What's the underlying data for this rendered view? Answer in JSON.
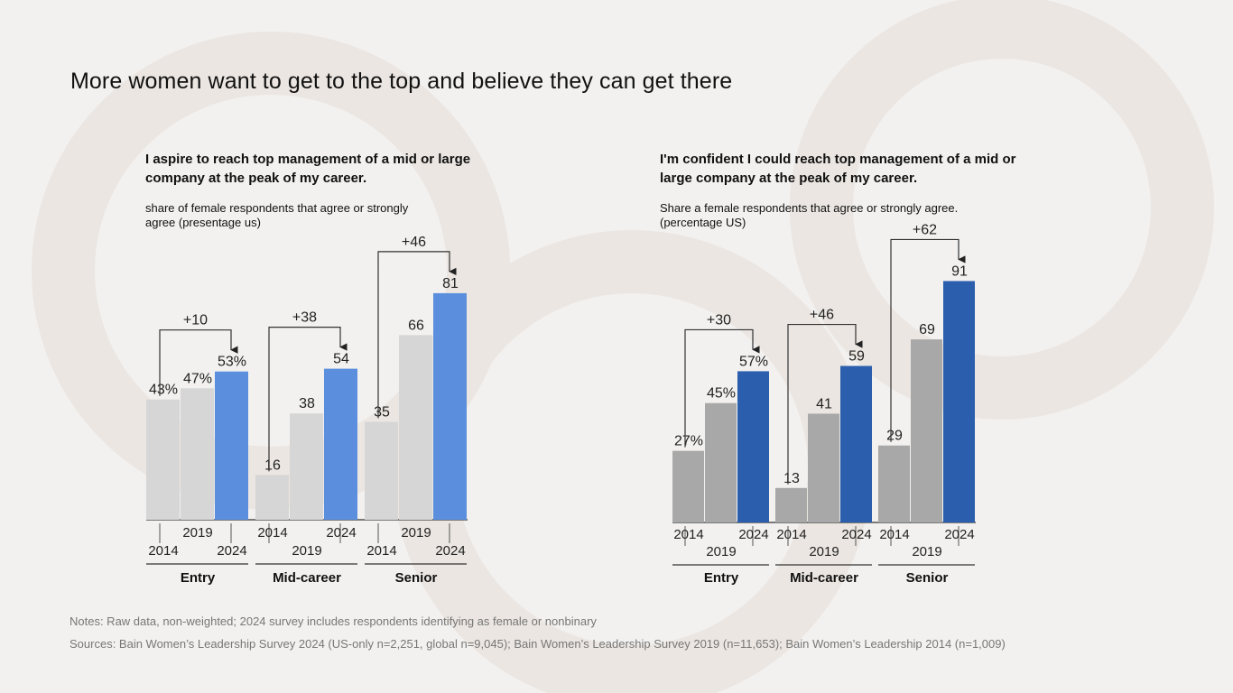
{
  "page": {
    "title": "More women want to get to the top and believe they can get there",
    "notes": "Notes: Raw data, non-weighted; 2024 survey includes respondents identifying as female or nonbinary",
    "sources": "Sources: Bain Women’s Leadership Survey 2024 (US-only n=2,251, global n=9,045); Bain Women’s Leadership Survey 2019 (n=11,653); Bain Women’s Leadership 2014 (n=1,009)"
  },
  "colors": {
    "background": "#f2f1f0",
    "watermark": "#ece7e2",
    "left_old_bar": "#d6d6d6",
    "left_2024_bar": "#5b8fdd",
    "right_old_bar": "#a8a8a8",
    "right_2024_bar": "#2b5fad"
  },
  "chart_data": [
    {
      "type": "bar",
      "title": "I aspire to reach top management of a mid or large company at the peak of my career.",
      "subtitle": "share of female respondents that agree or strongly agree (presentage us)",
      "ylim": [
        0,
        100
      ],
      "groups": [
        "Entry",
        "Mid-career",
        "Senior"
      ],
      "years": [
        "2014",
        "2019",
        "2024"
      ],
      "values": [
        [
          43,
          47,
          53
        ],
        [
          16,
          38,
          54
        ],
        [
          35,
          66,
          81
        ]
      ],
      "value_labels": [
        [
          "43%",
          "47%",
          "53%"
        ],
        [
          "16",
          "38",
          "54"
        ],
        [
          "35",
          "66",
          "81"
        ]
      ],
      "change_labels": [
        "+10",
        "+38",
        "+46"
      ]
    },
    {
      "type": "bar",
      "title": "I'm confident I could reach top management of a mid or large company at the peak of my career.",
      "subtitle": "Share a female respondents that agree or strongly agree. (percentage US)",
      "ylim": [
        0,
        100
      ],
      "groups": [
        "Entry",
        "Mid-career",
        "Senior"
      ],
      "years": [
        "2014",
        "2019",
        "2024"
      ],
      "values": [
        [
          27,
          45,
          57
        ],
        [
          13,
          41,
          59
        ],
        [
          29,
          69,
          91
        ]
      ],
      "value_labels": [
        [
          "27%",
          "45%",
          "57%"
        ],
        [
          "13",
          "41",
          "59"
        ],
        [
          "29",
          "69",
          "91"
        ]
      ],
      "change_labels": [
        "+30",
        "+46",
        "+62"
      ]
    }
  ]
}
